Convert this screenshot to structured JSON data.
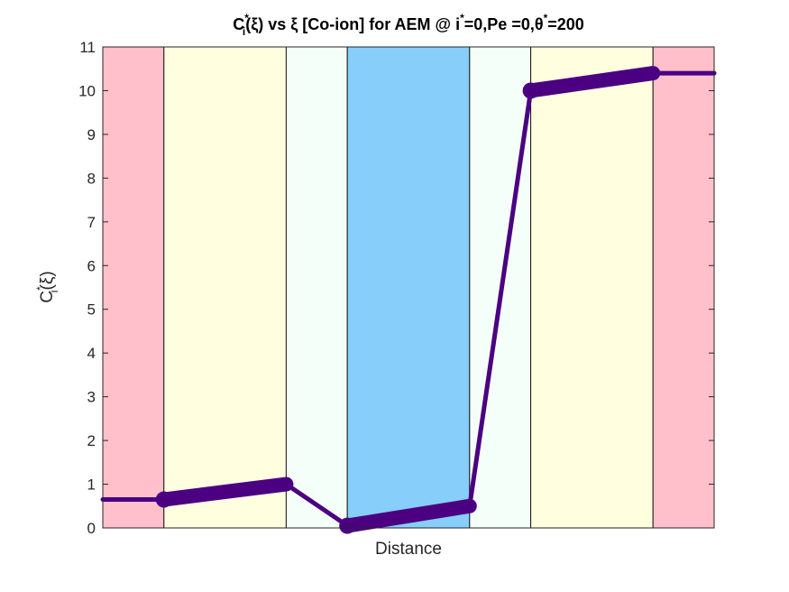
{
  "chart_data": {
    "type": "line",
    "title": {
      "p1": "C",
      "sup1": "*",
      "sub1": "i",
      "p2": "(ξ) vs ξ [Co-ion] for AEM @ i",
      "sup2": "*",
      "p3": "=0,Pe =0,θ",
      "sup3": "*",
      "p4": "=200"
    },
    "xlabel": "Distance",
    "ylabel": {
      "main": "C",
      "sup": "*",
      "sub": "i",
      "rest": "(ξ)"
    },
    "xlim": [
      0,
      10
    ],
    "ylim": [
      0,
      11
    ],
    "yticks": [
      0,
      1,
      2,
      3,
      4,
      5,
      6,
      7,
      8,
      9,
      10,
      11
    ],
    "yticklabels": [
      "0",
      "1",
      "2",
      "3",
      "4",
      "5",
      "6",
      "7",
      "8",
      "9",
      "10",
      "11"
    ],
    "grid": false,
    "region_colors": {
      "pink": "#ffc0cb",
      "yellow": "#ffffe0",
      "mint": "#f5fffa",
      "blue": "#87cefa"
    },
    "regions": [
      {
        "x0": 0,
        "x1": 1,
        "color": "pink"
      },
      {
        "x0": 1,
        "x1": 3,
        "color": "yellow"
      },
      {
        "x0": 3,
        "x1": 4,
        "color": "mint"
      },
      {
        "x0": 4,
        "x1": 6,
        "color": "blue"
      },
      {
        "x0": 6,
        "x1": 7,
        "color": "mint"
      },
      {
        "x0": 7,
        "x1": 9,
        "color": "yellow"
      },
      {
        "x0": 9,
        "x1": 10,
        "color": "pink"
      }
    ],
    "line_color": "#4b0082",
    "series": [
      {
        "x": [
          0,
          1
        ],
        "y": [
          0.65,
          0.65
        ],
        "style": "thin"
      },
      {
        "x": [
          1,
          3
        ],
        "y": [
          0.65,
          1.0
        ],
        "style": "thick"
      },
      {
        "x": [
          3,
          4
        ],
        "y": [
          1.0,
          0.05
        ],
        "style": "thin"
      },
      {
        "x": [
          4,
          6
        ],
        "y": [
          0.05,
          0.5
        ],
        "style": "thick"
      },
      {
        "x": [
          6,
          7
        ],
        "y": [
          0.5,
          10.0
        ],
        "style": "thin"
      },
      {
        "x": [
          7,
          9
        ],
        "y": [
          10.0,
          10.4
        ],
        "style": "thick"
      },
      {
        "x": [
          9,
          10
        ],
        "y": [
          10.4,
          10.4
        ],
        "style": "thin"
      }
    ]
  }
}
